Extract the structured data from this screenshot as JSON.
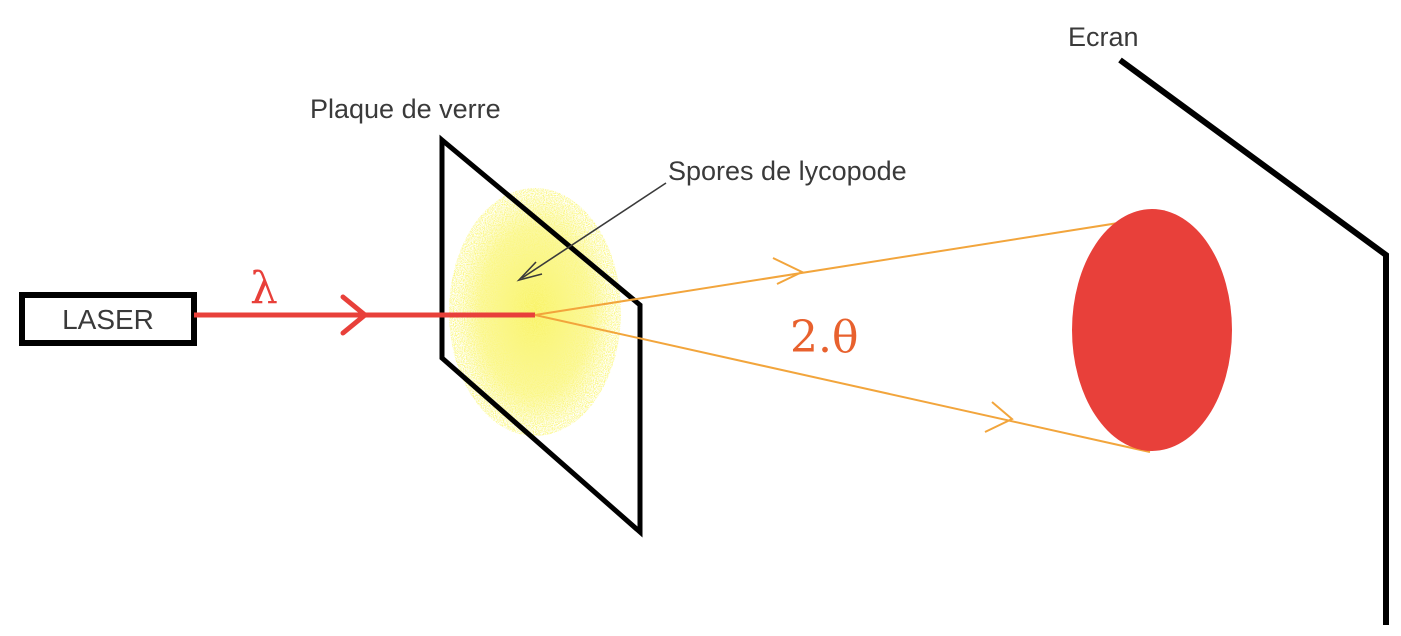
{
  "labels": {
    "screen": "Ecran",
    "glass_plate": "Plaque de verre",
    "spores": "Spores de lycopode",
    "laser": "LASER",
    "wavelength": "λ",
    "angle": "2.θ"
  },
  "colors": {
    "laser_beam": "#e8403a",
    "diffracted_rays": "#f2a53c",
    "spot": "#e8403a",
    "spores": "#f6ee3a",
    "outline": "#000000",
    "text": "#3a3a3a",
    "angle_text": "#e8612e"
  }
}
